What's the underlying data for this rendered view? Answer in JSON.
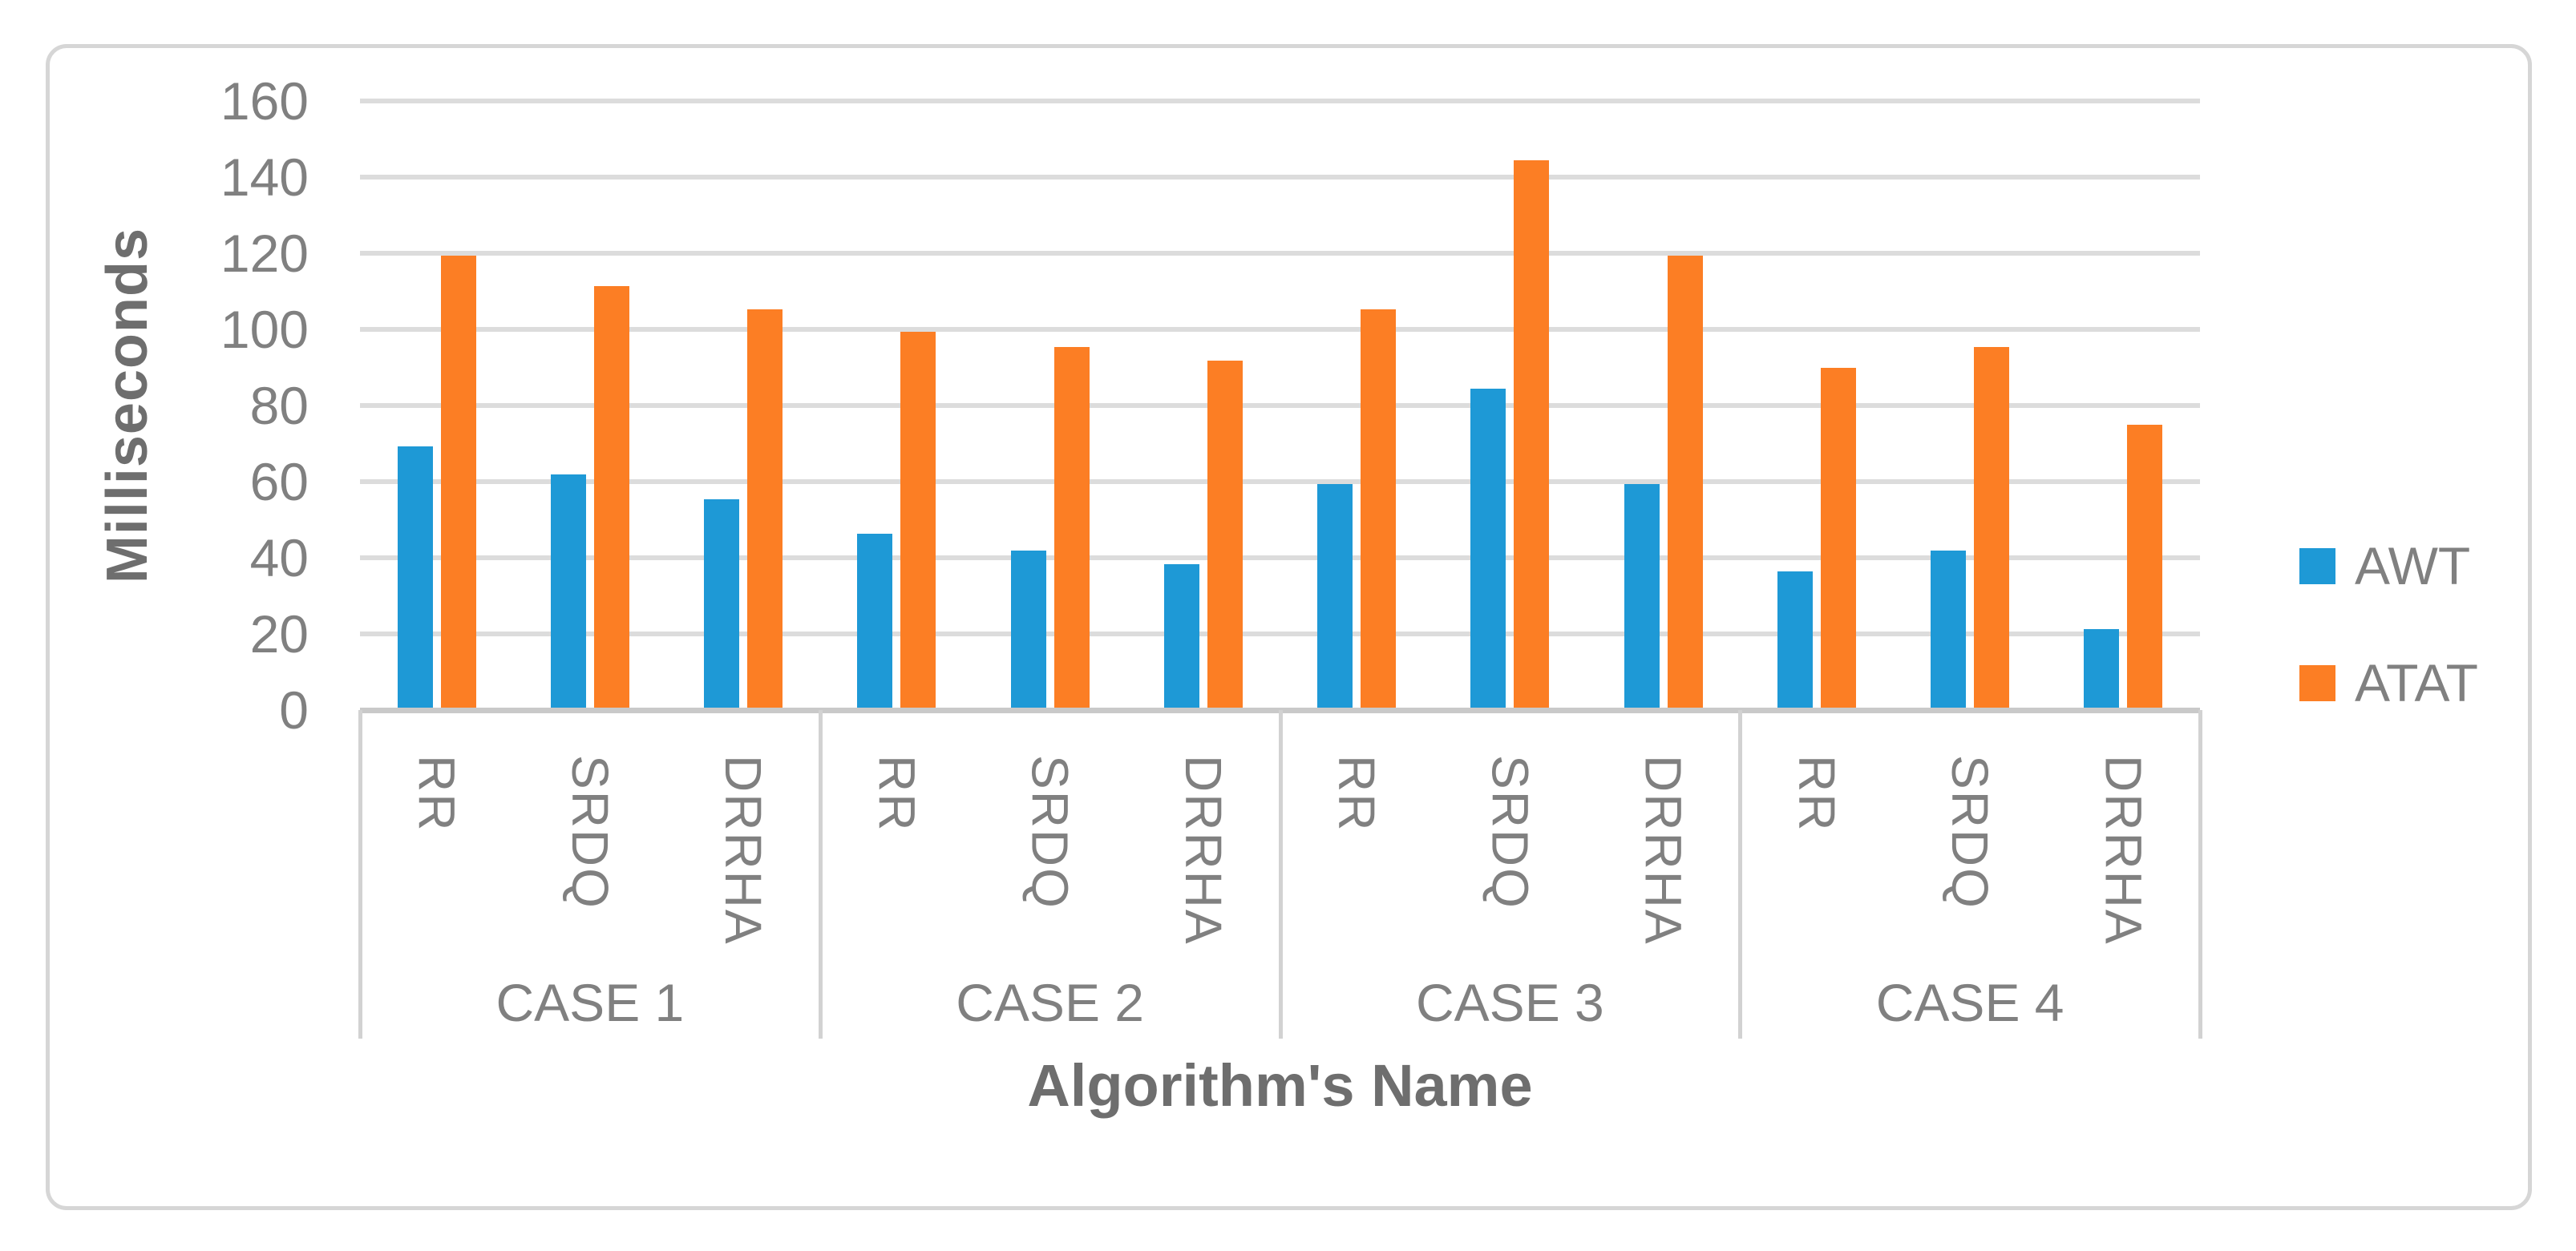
{
  "chart_data": {
    "type": "bar",
    "title": "",
    "ylabel": "Milliseconds",
    "xlabel": "Algorithm's Name",
    "ylim": [
      0,
      160
    ],
    "ytick_step": 20,
    "yticks": [
      160,
      140,
      120,
      100,
      80,
      60,
      40,
      20,
      0
    ],
    "grid": true,
    "legend_position": "right",
    "group_labels": [
      "CASE 1",
      "CASE 2",
      "CASE 3",
      "CASE 4"
    ],
    "categories": [
      "RR",
      "SRDQ",
      "DRRHA"
    ],
    "series": [
      {
        "name": "AWT",
        "color": "#1E99D6",
        "values": [
          [
            70,
            62.5,
            56
          ],
          [
            47,
            42.5,
            39
          ],
          [
            60,
            85,
            60
          ],
          [
            37,
            42.5,
            22
          ]
        ]
      },
      {
        "name": "ATAT",
        "color": "#FC7E24",
        "values": [
          [
            120,
            112,
            106
          ],
          [
            100,
            96,
            92.5
          ],
          [
            106,
            145,
            120
          ],
          [
            90.5,
            96,
            75.5
          ]
        ]
      }
    ]
  },
  "colors": {
    "background": "#FFFFFF",
    "frame_border": "#D6D6D6",
    "gridline": "#DCDCDC",
    "axis_line": "#C9C9C9",
    "category_line": "#D2D2D2",
    "tick_text": "#808080",
    "title_text": "#6E6E6E"
  }
}
